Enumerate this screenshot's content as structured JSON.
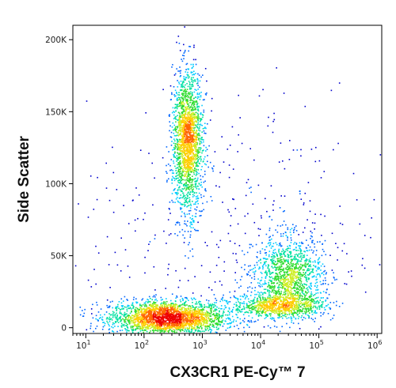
{
  "chart_data": {
    "type": "scatter",
    "plot_style": "flow cytometry density dot plot",
    "xlabel": "CX3CR1 PE-Cy™ 7",
    "ylabel": "Side Scatter",
    "x_scale": "log",
    "x_range": [
      6,
      1200000
    ],
    "y_range": [
      -4000,
      210000
    ],
    "x_ticks": [
      {
        "value": 10,
        "base": "10",
        "exp": "1"
      },
      {
        "value": 100,
        "base": "10",
        "exp": "2"
      },
      {
        "value": 1000,
        "base": "10",
        "exp": "3"
      },
      {
        "value": 10000,
        "base": "10",
        "exp": "4"
      },
      {
        "value": 100000,
        "base": "10",
        "exp": "5"
      },
      {
        "value": 1000000,
        "base": "10",
        "exp": "6"
      }
    ],
    "y_ticks": [
      {
        "value": 0,
        "label": "0"
      },
      {
        "value": 50000,
        "label": "50K"
      },
      {
        "value": 100000,
        "label": "100K"
      },
      {
        "value": 150000,
        "label": "150K"
      },
      {
        "value": 200000,
        "label": "200K"
      }
    ],
    "grid": false,
    "density_colors": [
      "#0000cc",
      "#0066ff",
      "#00ccff",
      "#00e0a0",
      "#33dd33",
      "#ccee22",
      "#ffcc00",
      "#ff6600",
      "#ee0000"
    ],
    "populations": [
      {
        "id": "lymphocytes-cx3cr1-low",
        "x_center": 250,
        "y_center": 7000,
        "x_spread_decades": 0.5,
        "y_spread": 6000,
        "count": 2600
      },
      {
        "id": "granulocytes-cx3cr1-dim",
        "x_center": 550,
        "y_center": 130000,
        "x_spread_decades": 0.13,
        "y_spread": 24000,
        "count": 1900
      },
      {
        "id": "monocytes-cx3cr1-high",
        "x_center": 30000,
        "y_center": 35000,
        "x_spread_decades": 0.3,
        "y_spread": 14000,
        "count": 1300
      },
      {
        "id": "cx3cr1-high-low-ssc-tail",
        "x_center": 20000,
        "y_center": 16000,
        "x_spread_decades": 0.4,
        "y_spread": 4000,
        "count": 800
      },
      {
        "id": "background-events",
        "x_center": 3000,
        "y_center": 60000,
        "x_spread_decades": 1.3,
        "y_spread": 50000,
        "count": 450
      }
    ]
  }
}
